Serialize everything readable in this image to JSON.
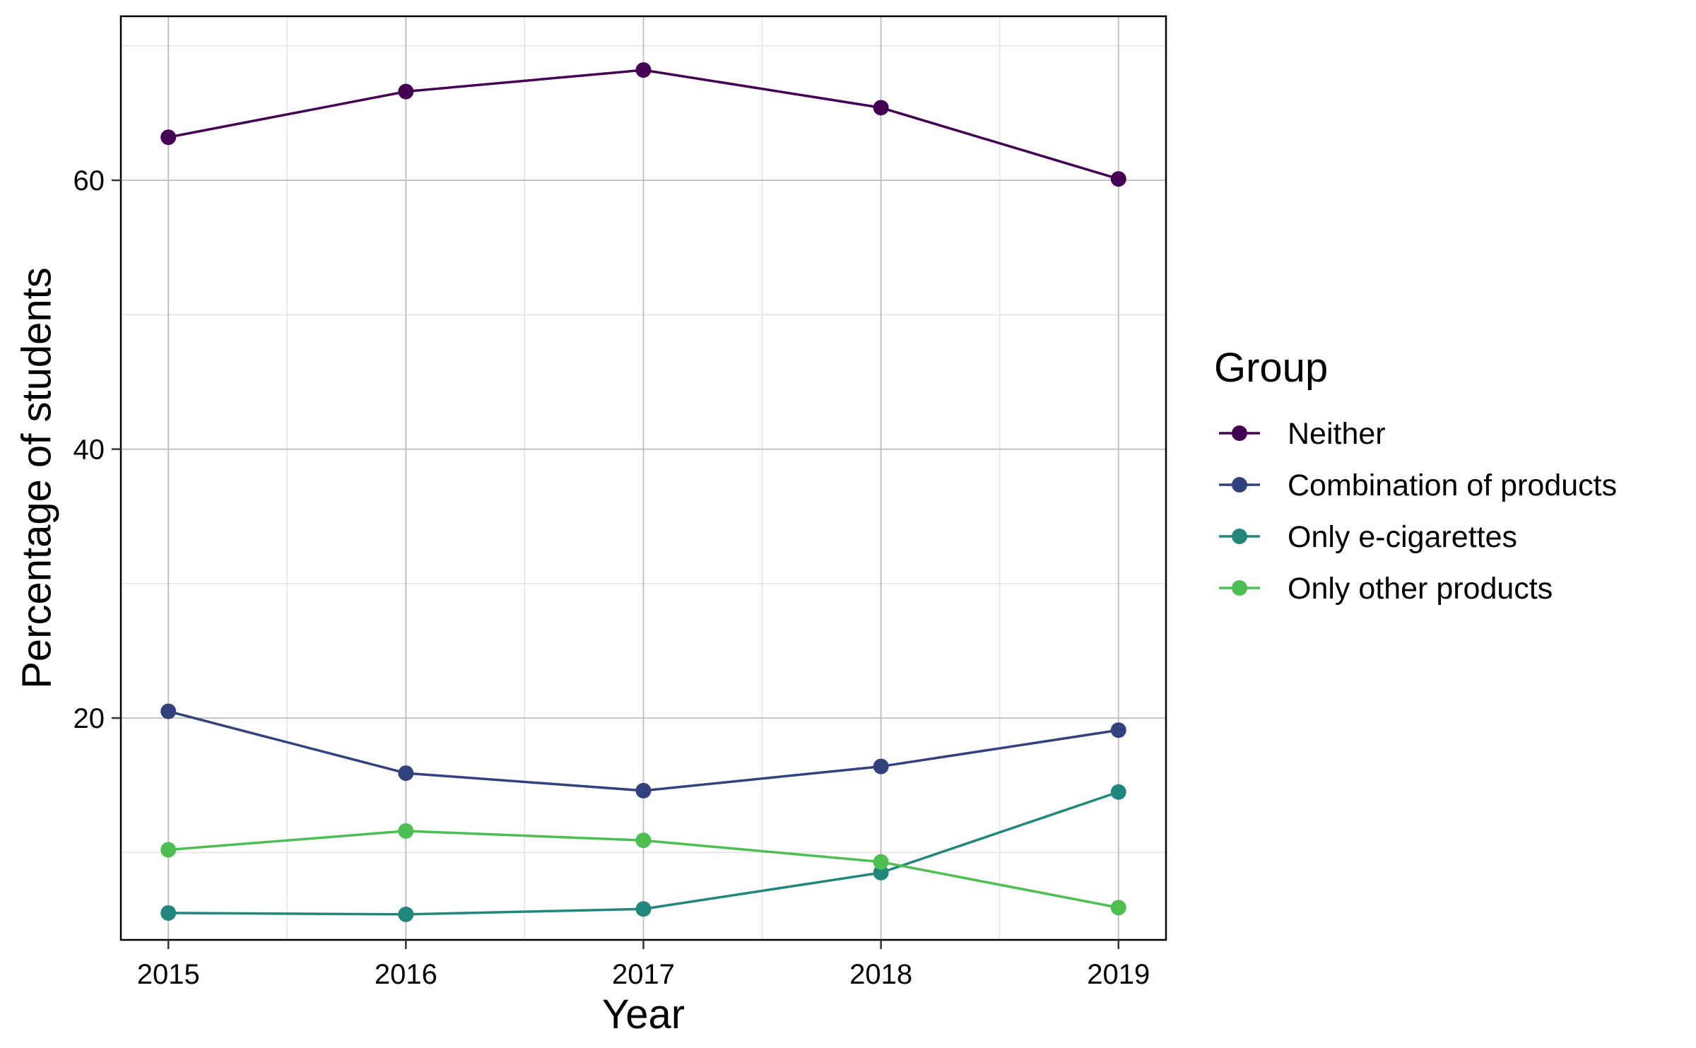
{
  "chart_data": {
    "type": "line",
    "x": [
      2015,
      2016,
      2017,
      2018,
      2019
    ],
    "xlabel": "Year",
    "ylabel": "Percentage of students",
    "xticks": [
      "2015",
      "2016",
      "2017",
      "2018",
      "2019"
    ],
    "yticks": [
      "20",
      "40",
      "60"
    ],
    "xlim": [
      2014.8,
      2019.2
    ],
    "ylim": [
      3.5,
      72.2
    ],
    "grid": true,
    "legend": {
      "title": "Group",
      "placement": "right"
    },
    "series": [
      {
        "name": "Neither",
        "color": "#440154",
        "values": [
          63.2,
          66.6,
          68.2,
          65.4,
          60.1
        ]
      },
      {
        "name": "Combination of products",
        "color": "#31427E",
        "values": [
          20.5,
          15.9,
          14.6,
          16.4,
          19.1
        ]
      },
      {
        "name": "Only e-cigarettes",
        "color": "#21867B",
        "values": [
          5.5,
          5.4,
          5.8,
          8.5,
          14.5
        ]
      },
      {
        "name": "Only other products",
        "color": "#4DBF52",
        "values": [
          10.2,
          11.6,
          10.9,
          9.3,
          5.9
        ]
      }
    ]
  }
}
